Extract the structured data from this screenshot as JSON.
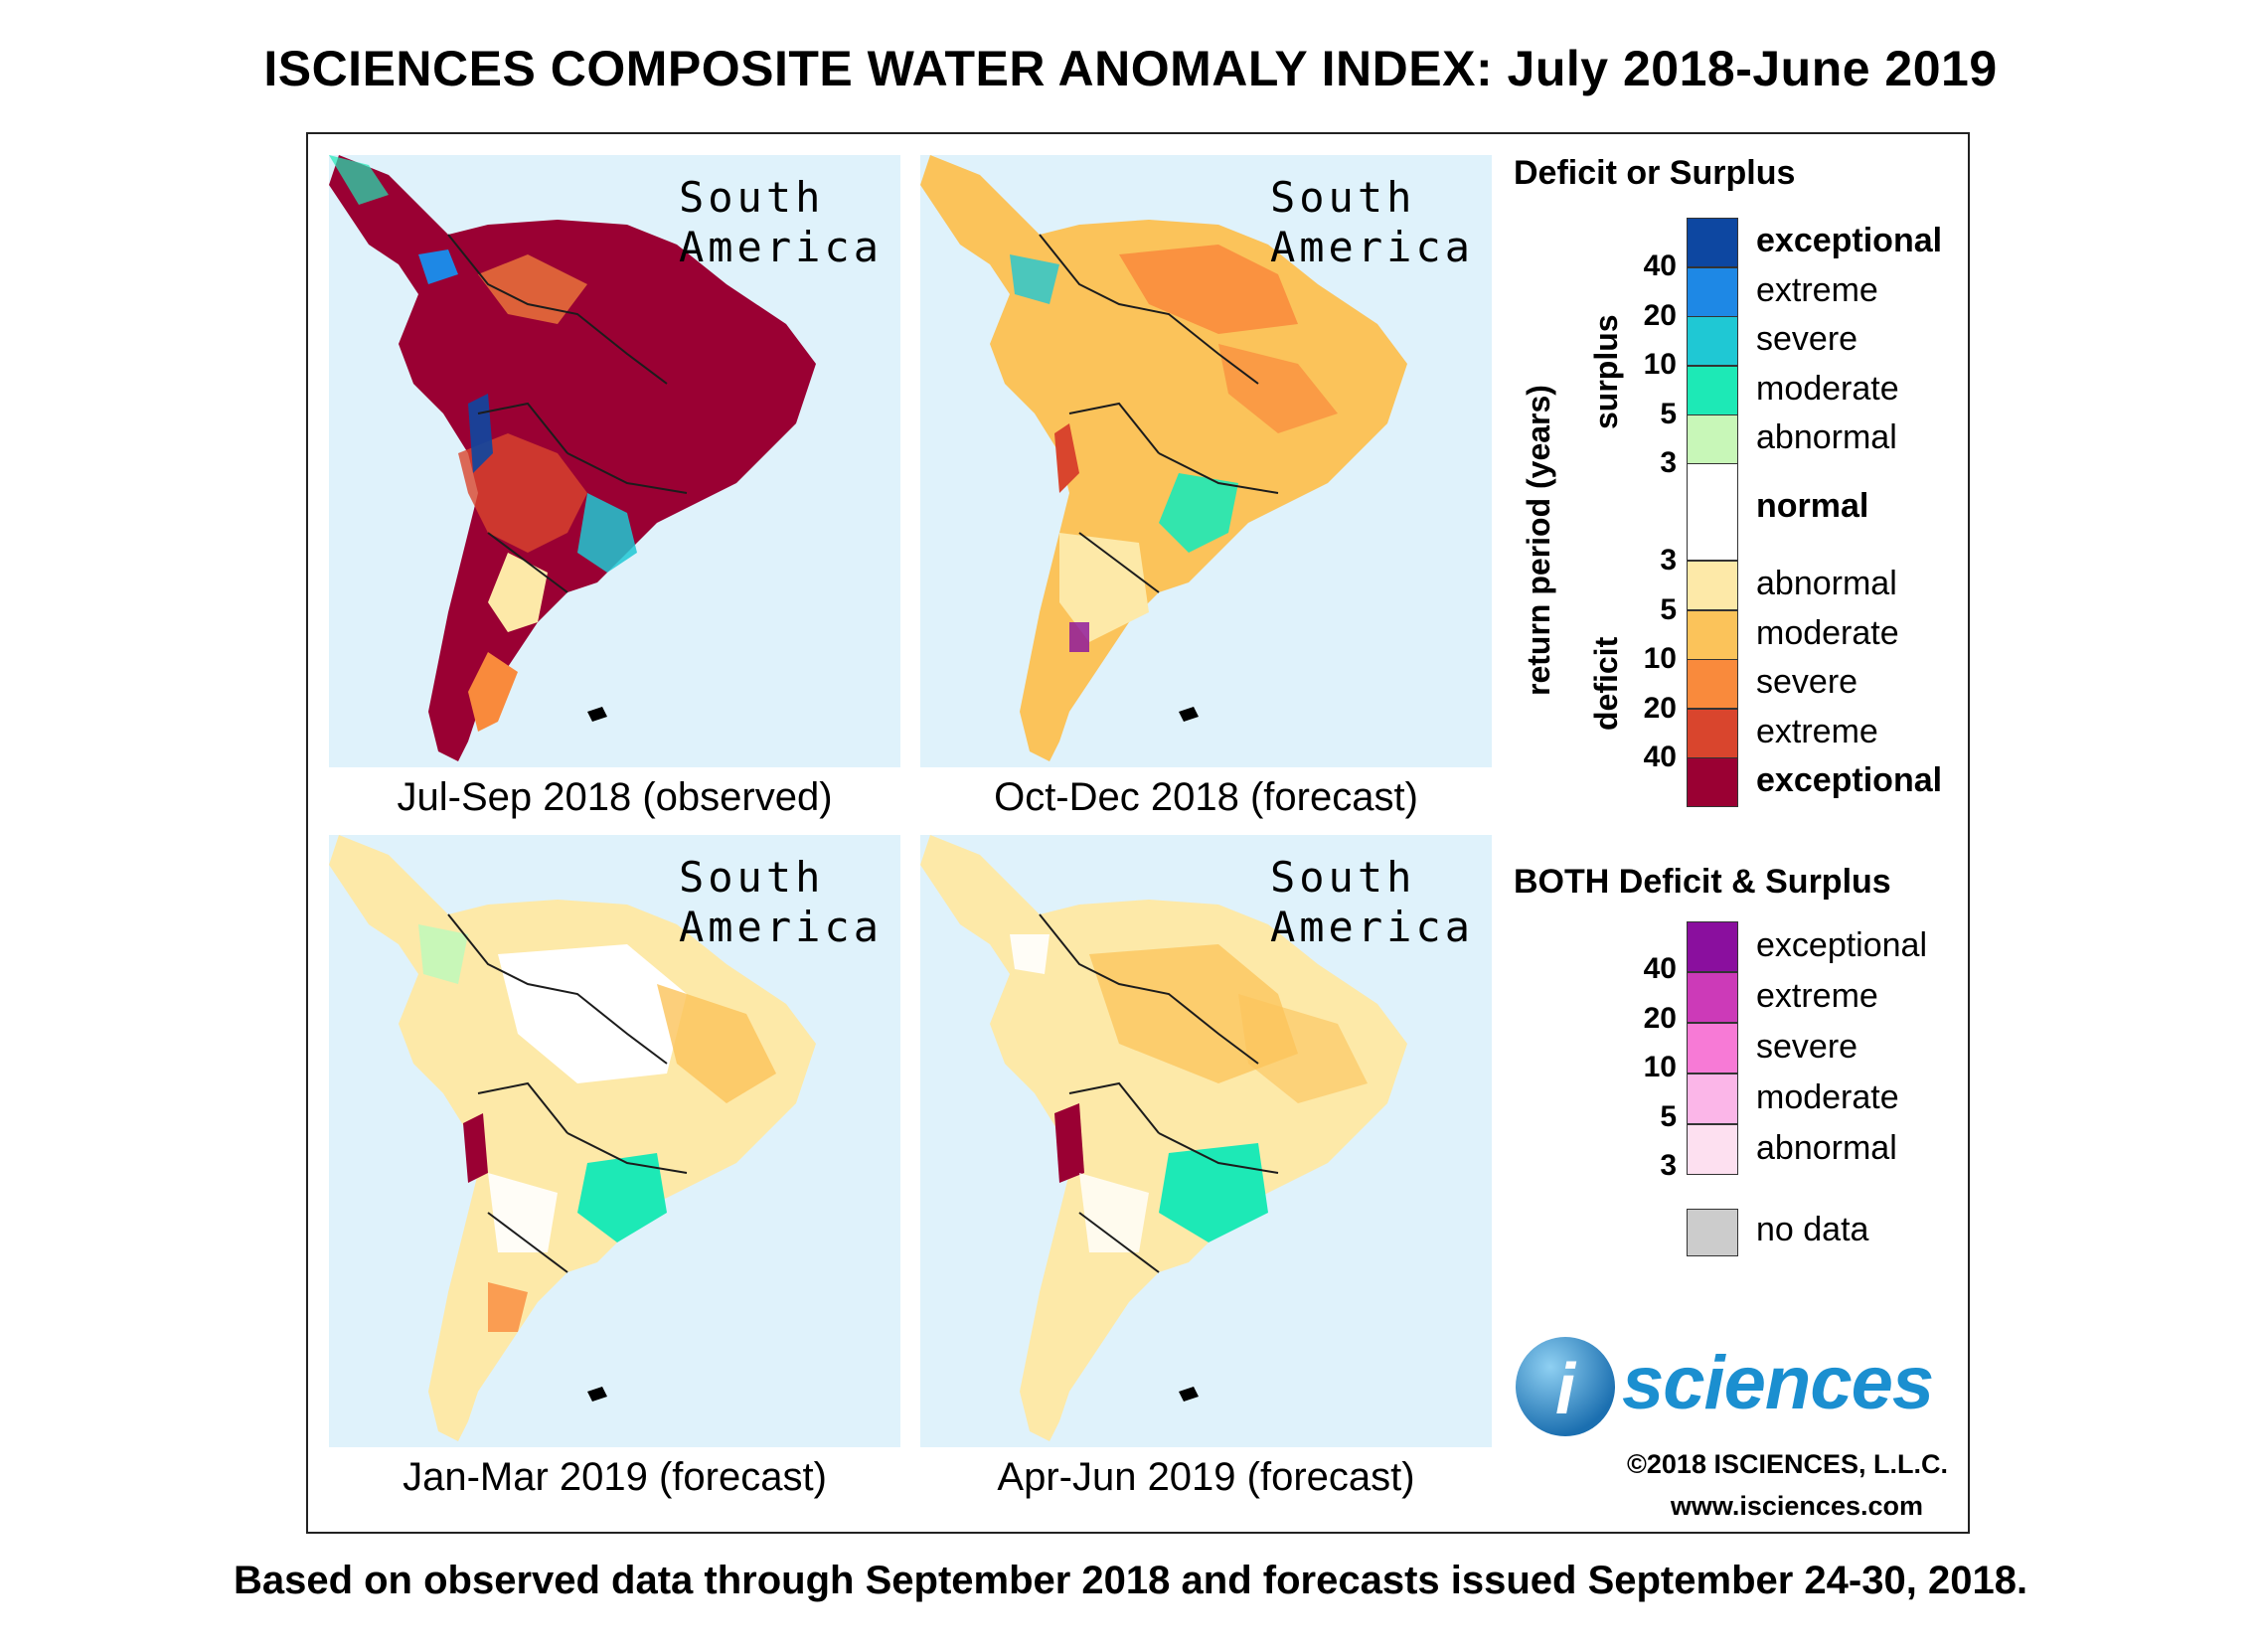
{
  "title": "ISCIENCES COMPOSITE WATER ANOMALY INDEX: July 2018-June 2019",
  "footer": "Based on observed data through September 2018 and forecasts issued September 24-30, 2018.",
  "panels": [
    {
      "region_line1": "South",
      "region_line2": "America",
      "caption": "Jul-Sep 2018 (observed)",
      "dominant": "exceptional deficit"
    },
    {
      "region_line1": "South",
      "region_line2": "America",
      "caption": "Oct-Dec 2018 (forecast)",
      "dominant": "moderate deficit"
    },
    {
      "region_line1": "South",
      "region_line2": "America",
      "caption": "Jan-Mar 2019 (forecast)",
      "dominant": "abnormal deficit / normal"
    },
    {
      "region_line1": "South",
      "region_line2": "America",
      "caption": "Apr-Jun 2019 (forecast)",
      "dominant": "abnormal deficit"
    }
  ],
  "legend": {
    "title": "Deficit or Surplus",
    "axis_label": "return period (years)",
    "surplus_label": "surplus",
    "deficit_label": "deficit",
    "surplus": [
      {
        "label": "exceptional",
        "color": "#0d47a1",
        "bold": true
      },
      {
        "label": "extreme",
        "color": "#1e88e5",
        "bold": false
      },
      {
        "label": "severe",
        "color": "#1fc8d4",
        "bold": false
      },
      {
        "label": "moderate",
        "color": "#1de9b6",
        "bold": false
      },
      {
        "label": "abnormal",
        "color": "#c8f7b8",
        "bold": false
      }
    ],
    "surplus_ticks": [
      "40",
      "20",
      "10",
      "5",
      "3"
    ],
    "normal": {
      "label": "normal",
      "color": "#ffffff"
    },
    "deficit": [
      {
        "label": "abnormal",
        "color": "#fde9a8",
        "bold": false
      },
      {
        "label": "moderate",
        "color": "#fbc35a",
        "bold": false
      },
      {
        "label": "severe",
        "color": "#f98a3c",
        "bold": false
      },
      {
        "label": "extreme",
        "color": "#d9452d",
        "bold": false
      },
      {
        "label": "exceptional",
        "color": "#9a0033",
        "bold": true
      }
    ],
    "deficit_ticks": [
      "3",
      "5",
      "10",
      "20",
      "40"
    ],
    "both_title": "BOTH Deficit & Surplus",
    "both": [
      {
        "label": "exceptional",
        "color": "#8a0f9e"
      },
      {
        "label": "extreme",
        "color": "#cc3ab8"
      },
      {
        "label": "severe",
        "color": "#f77ad6"
      },
      {
        "label": "moderate",
        "color": "#fbb6e8"
      },
      {
        "label": "abnormal",
        "color": "#fde0f0"
      }
    ],
    "both_ticks": [
      "40",
      "20",
      "10",
      "5",
      "3"
    ],
    "no_data": {
      "label": "no data",
      "color": "#cccccc"
    }
  },
  "logo": {
    "i": "i",
    "text": "sciences"
  },
  "copyright": "©2018 ISCIENCES, L.L.C.",
  "website": "www.isciences.com"
}
